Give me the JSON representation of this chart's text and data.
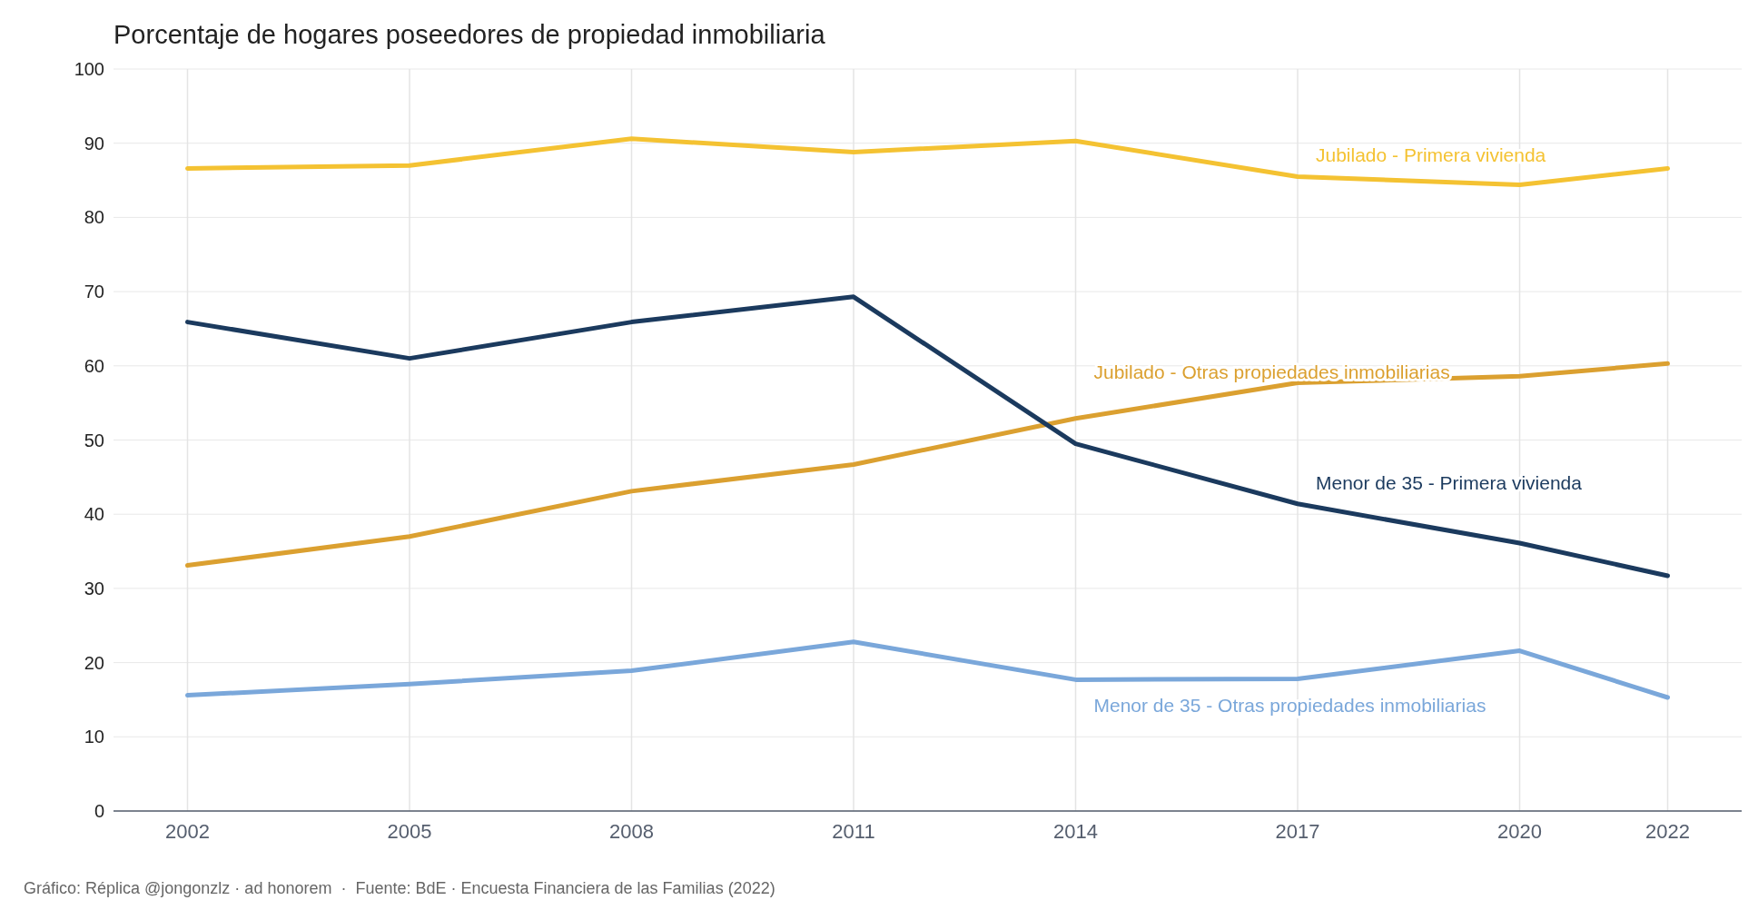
{
  "chart_data": {
    "type": "line",
    "title": "Porcentaje de hogares poseedores de propiedad inmobiliaria",
    "x": [
      2002,
      2005,
      2008,
      2011,
      2014,
      2017,
      2020,
      2022
    ],
    "xlim": [
      2001,
      2023
    ],
    "xticks": [
      2002,
      2005,
      2008,
      2011,
      2014,
      2017,
      2020,
      2022
    ],
    "ylim": [
      0,
      100
    ],
    "yticks": [
      0,
      10,
      20,
      30,
      40,
      50,
      60,
      70,
      80,
      90,
      100
    ],
    "grid": true,
    "legend": false,
    "marker": "none",
    "line_style": "solid",
    "series": [
      {
        "name": "Jubilado - Primera vivienda",
        "color": "#f4c232",
        "values": [
          86.6,
          87.0,
          90.6,
          88.8,
          90.3,
          85.5,
          84.4,
          86.6
        ]
      },
      {
        "name": "Jubilado - Otras propiedades inmobiliarias",
        "color": "#dba030",
        "values": [
          33.1,
          37.0,
          43.1,
          46.7,
          52.9,
          57.7,
          58.6,
          60.3
        ]
      },
      {
        "name": "Menor de 35 - Primera vivienda",
        "color": "#1b3a5e",
        "values": [
          65.9,
          61.0,
          65.9,
          69.3,
          49.5,
          41.4,
          36.1,
          31.7
        ]
      },
      {
        "name": "Menor de 35 - Otras propiedades inmobiliarias",
        "color": "#7aa7da",
        "values": [
          15.6,
          17.1,
          18.9,
          22.8,
          17.7,
          17.8,
          21.6,
          15.3
        ]
      }
    ],
    "annotations": [
      "Gráfico: Réplica @jongonzlz · ad honorem  ·  Fuente: BdE · Encuesta Financiera de las Familias (2022)"
    ]
  }
}
